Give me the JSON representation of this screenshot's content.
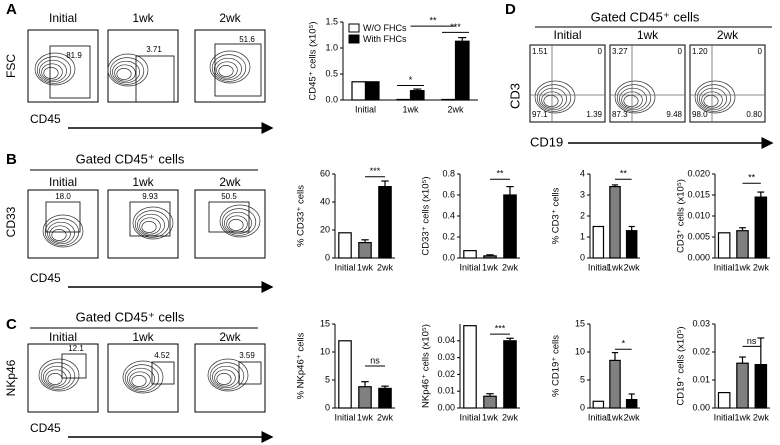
{
  "panels": {
    "A": {
      "letter": "A",
      "columns": [
        "Initial",
        "1wk",
        "2wk"
      ],
      "gates": [
        "81.9",
        "3.71",
        "51.6"
      ],
      "y_label": "FSC",
      "x_label": "CD45"
    },
    "B": {
      "letter": "B",
      "header": "Gated CD45⁺ cells",
      "columns": [
        "Initial",
        "1wk",
        "2wk"
      ],
      "gates": [
        "18.0",
        "9.93",
        "50.5"
      ],
      "y_label": "CD33",
      "x_label": "CD45"
    },
    "C": {
      "letter": "C",
      "header": "Gated CD45⁺ cells",
      "columns": [
        "Initial",
        "1wk",
        "2wk"
      ],
      "gates": [
        "12.1",
        "4.52",
        "3.59"
      ],
      "y_label": "NKp46",
      "x_label": "CD45"
    },
    "D": {
      "letter": "D",
      "header": "Gated CD45⁺ cells",
      "columns": [
        "Initial",
        "1wk",
        "2wk"
      ],
      "quadrants": [
        [
          "1.51",
          "0",
          "97.1",
          "1.39"
        ],
        [
          "3.27",
          "0",
          "87.3",
          "9.48"
        ],
        [
          "1.20",
          "0",
          "98.0",
          "0.80"
        ]
      ],
      "y_label": "CD3",
      "x_label": "CD19"
    }
  },
  "chart_data": [
    {
      "type": "bar",
      "y_label": "CD45⁺ cells (x10⁵)",
      "categories": [
        "Initial",
        "1wk",
        "2wk"
      ],
      "series": [
        {
          "name": "W/O FHCs",
          "color": "#ffffff",
          "values": [
            0.35,
            0.01,
            0.01
          ]
        },
        {
          "name": "With FHCs",
          "color": "#000000",
          "values": [
            0.35,
            0.18,
            1.13
          ],
          "errors": [
            null,
            0.03,
            0.07
          ]
        }
      ],
      "ylim": [
        0,
        1.5
      ],
      "yticks": [
        {
          "value": 0,
          "label": "0.0"
        },
        {
          "value": 0.5,
          "label": "0.5"
        },
        {
          "value": 1,
          "label": "1.0"
        },
        {
          "value": 1.5,
          "label": "1.5"
        }
      ],
      "legend": "top-left",
      "annotations": [
        "*",
        "**",
        "***"
      ]
    },
    {
      "type": "bar",
      "y_label": "% CD33⁺ cells",
      "categories": [
        "Initial",
        "1wk",
        "2wk"
      ],
      "values": [
        18,
        11,
        51
      ],
      "errors": [
        null,
        2,
        4
      ],
      "colors": [
        "#ffffff",
        "#808080",
        "#000000"
      ],
      "ylim": [
        0,
        60
      ],
      "yticks": [
        0,
        20,
        40,
        60
      ],
      "annotations": [
        "***"
      ]
    },
    {
      "type": "bar",
      "y_label": "CD33⁺ cells (x10⁵)",
      "categories": [
        "Initial",
        "1wk",
        "2wk"
      ],
      "values": [
        0.07,
        0.02,
        0.6
      ],
      "errors": [
        null,
        0.01,
        0.08
      ],
      "colors": [
        "#ffffff",
        "#808080",
        "#000000"
      ],
      "ylim": [
        0,
        0.8
      ],
      "yticks": [
        {
          "value": 0,
          "label": "0.0"
        },
        0.2,
        0.4,
        0.6,
        0.8
      ],
      "annotations": [
        "**"
      ]
    },
    {
      "type": "bar",
      "y_label": "% CD3⁺ cells",
      "categories": [
        "Initial",
        "1wk",
        "2wk"
      ],
      "values": [
        1.5,
        3.4,
        1.3
      ],
      "errors": [
        null,
        0.08,
        0.2
      ],
      "colors": [
        "#ffffff",
        "#808080",
        "#000000"
      ],
      "ylim": [
        0,
        4
      ],
      "yticks": [
        0,
        1,
        2,
        3,
        4
      ],
      "annotations": [
        "**"
      ]
    },
    {
      "type": "bar",
      "y_label": "CD3⁺ cells (x10⁵)",
      "categories": [
        "Initial",
        "1wk",
        "2wk"
      ],
      "values": [
        0.006,
        0.0065,
        0.0145
      ],
      "errors": [
        null,
        0.0007,
        0.0012
      ],
      "colors": [
        "#ffffff",
        "#808080",
        "#000000"
      ],
      "ylim": [
        0,
        0.02
      ],
      "yticks": [
        {
          "value": 0,
          "label": "0.000"
        },
        {
          "value": 0.005,
          "label": "0.005"
        },
        {
          "value": 0.01,
          "label": "0.010"
        },
        {
          "value": 0.015,
          "label": "0.015"
        },
        {
          "value": 0.02,
          "label": "0.020"
        }
      ],
      "annotations": [
        "**"
      ]
    },
    {
      "type": "bar",
      "y_label": "% NKp46⁺ cells",
      "categories": [
        "Initial",
        "1wk",
        "2wk"
      ],
      "values": [
        12,
        3.8,
        3.5
      ],
      "errors": [
        null,
        0.9,
        0.4
      ],
      "colors": [
        "#ffffff",
        "#808080",
        "#000000"
      ],
      "ylim": [
        0,
        15
      ],
      "yticks": [
        0,
        5,
        10,
        15
      ],
      "annotations": [
        "ns"
      ]
    },
    {
      "type": "bar",
      "y_label": "NKp46⁺ cells (x10⁵)",
      "categories": [
        "Initial",
        "1wk",
        "2wk"
      ],
      "values": [
        0.049,
        0.007,
        0.04
      ],
      "errors": [
        null,
        0.0015,
        0.0015
      ],
      "colors": [
        "#ffffff",
        "#808080",
        "#000000"
      ],
      "ylim": [
        0,
        0.05
      ],
      "yticks": [
        {
          "value": 0,
          "label": "0.00"
        },
        {
          "value": 0.01,
          "label": "0.01"
        },
        {
          "value": 0.02,
          "label": "0.02"
        },
        {
          "value": 0.03,
          "label": "0.03"
        },
        {
          "value": 0.04,
          "label": "0.04"
        }
      ],
      "annotations": [
        "***"
      ]
    },
    {
      "type": "bar",
      "y_label": "% CD19⁺ cells",
      "categories": [
        "Initial",
        "1wk",
        "2wk"
      ],
      "values": [
        1.2,
        8.5,
        1.5
      ],
      "errors": [
        null,
        1.4,
        1
      ],
      "colors": [
        "#ffffff",
        "#808080",
        "#000000"
      ],
      "ylim": [
        0,
        15
      ],
      "yticks": [
        0,
        5,
        10,
        15
      ],
      "annotations": [
        "*"
      ]
    },
    {
      "type": "bar",
      "y_label": "CD19⁺ cells (x10⁵)",
      "categories": [
        "Initial",
        "1wk",
        "2wk"
      ],
      "values": [
        0.0055,
        0.016,
        0.0155
      ],
      "errors": [
        null,
        0.0022,
        0.0095
      ],
      "colors": [
        "#ffffff",
        "#808080",
        "#000000"
      ],
      "ylim": [
        0,
        0.03
      ],
      "yticks": [
        {
          "value": 0,
          "label": "0.00"
        },
        {
          "value": 0.01,
          "label": "0.01"
        },
        {
          "value": 0.02,
          "label": "0.02"
        },
        {
          "value": 0.03,
          "label": "0.03"
        }
      ],
      "annotations": [
        "ns"
      ]
    }
  ]
}
